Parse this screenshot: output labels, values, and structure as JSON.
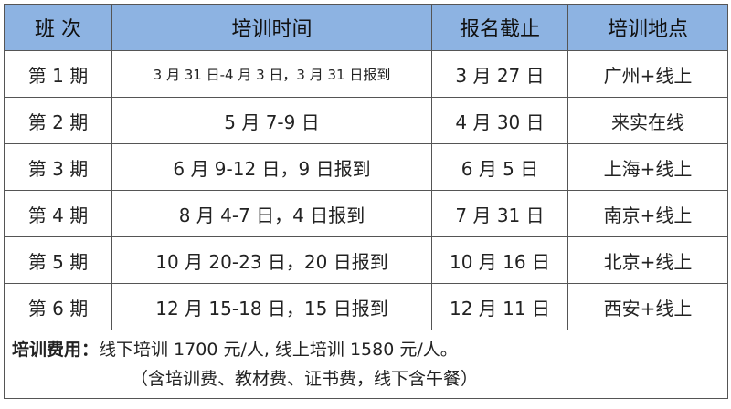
{
  "header": [
    "班 次",
    "培训时间",
    "报名截止",
    "培训地点"
  ],
  "header_color": "#8db3e2",
  "rows": [
    {
      "session": "第 1 期",
      "dates": "3 月 31 日-4 月 3 日，3 月 31 日报到",
      "deadline": "3 月 27 日",
      "location": "广州+线上"
    },
    {
      "session": "第 2 期",
      "dates": "5 月 7-9 日",
      "deadline": "4 月 30 日",
      "location": "来实在线"
    },
    {
      "session": "第 3 期",
      "dates": "6 月 9-12 日，9 日报到",
      "deadline": "6 月 5 日",
      "location": "上海+线上"
    },
    {
      "session": "第 4 期",
      "dates": "8 月 4-7 日，4 日报到",
      "deadline": "7 月 31 日",
      "location": "南京+线上"
    },
    {
      "session": "第 5 期",
      "dates": "10 月 20-23 日，20 日报到",
      "deadline": "10 月 16 日",
      "location": "北京+线上"
    },
    {
      "session": "第 6 期",
      "dates": "12 月 15-18 日，15 日报到",
      "deadline": "12 月 11 日",
      "location": "西安+线上"
    }
  ],
  "fee": {
    "label": "培训费用：",
    "text": "线下培训 1700 元/人, 线上培训 1580 元/人。",
    "note": "（含培训费、教材费、证书费，线下含午餐）"
  }
}
